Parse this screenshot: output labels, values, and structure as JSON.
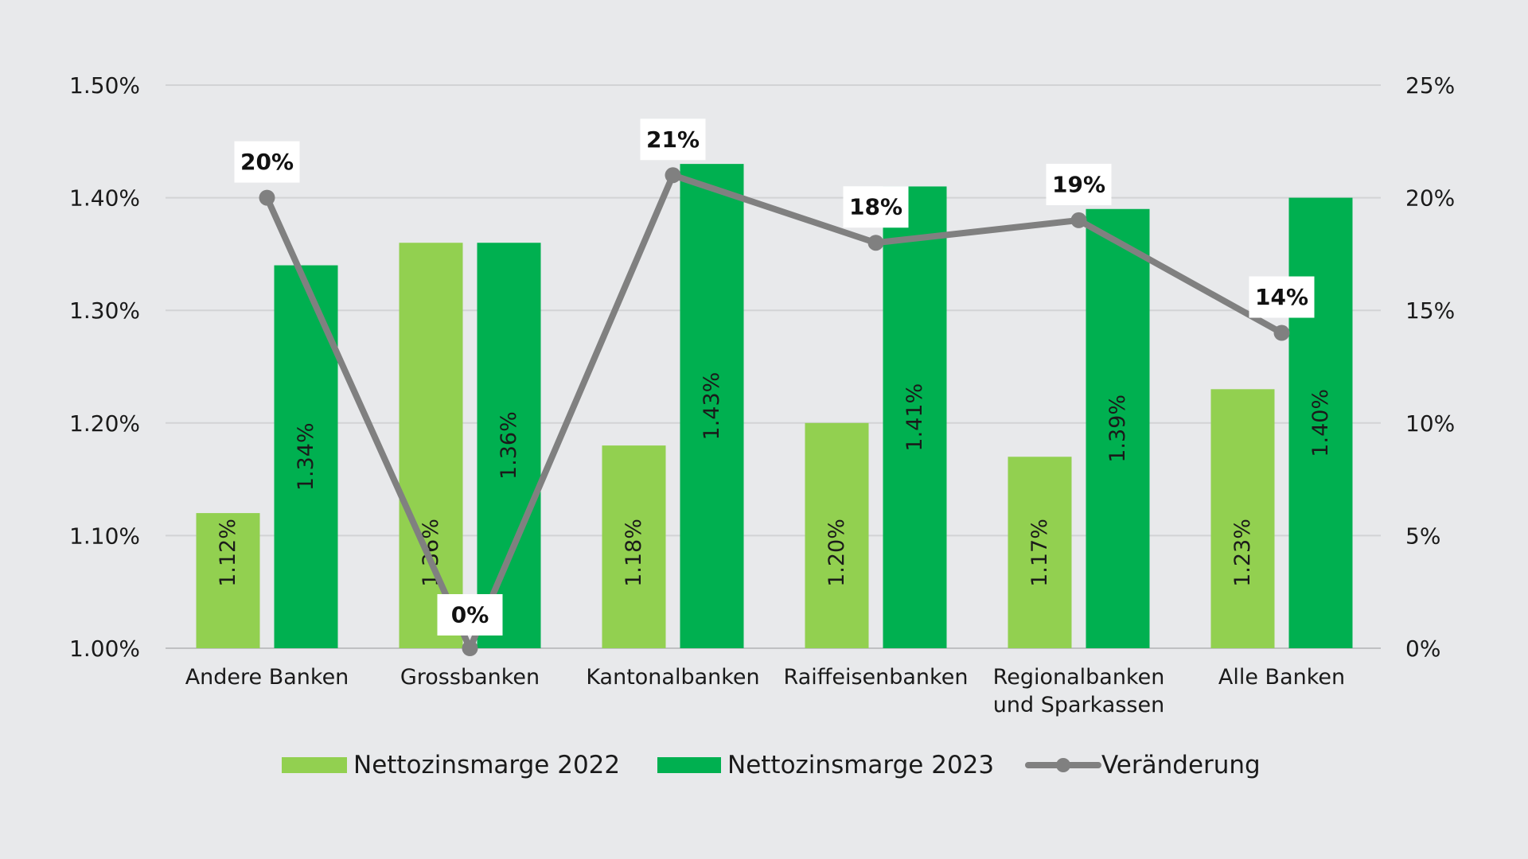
{
  "chart_data": {
    "type": "bar",
    "categories": [
      "Andere Banken",
      "Grossbanken",
      "Kantonalbanken",
      "Raiffeisenbanken",
      "Regionalbanken und Sparkassen",
      "Alle Banken"
    ],
    "category_lines": [
      [
        "Andere Banken"
      ],
      [
        "Grossbanken"
      ],
      [
        "Kantonalbanken"
      ],
      [
        "Raiffeisenbanken"
      ],
      [
        "Regionalbanken",
        "und Sparkassen"
      ],
      [
        "Alle Banken"
      ]
    ],
    "series": [
      {
        "name": "Nettozinsmarge 2022",
        "type": "bar",
        "axis": "left",
        "color": "#92d050",
        "values": [
          1.12,
          1.36,
          1.18,
          1.2,
          1.17,
          1.23
        ],
        "labels": [
          "1.12%",
          "1.36%",
          "1.18%",
          "1.20%",
          "1.17%",
          "1.23%"
        ]
      },
      {
        "name": "Nettozinsmarge 2023",
        "type": "bar",
        "axis": "left",
        "color": "#00b050",
        "values": [
          1.34,
          1.36,
          1.43,
          1.41,
          1.39,
          1.4
        ],
        "labels": [
          "1.34%",
          "1.36%",
          "1.43%",
          "1.41%",
          "1.39%",
          "1.40%"
        ]
      },
      {
        "name": "Veränderung",
        "type": "line",
        "axis": "right",
        "color": "#808080",
        "values": [
          20,
          0,
          21,
          18,
          19,
          14
        ],
        "labels": [
          "20%",
          "0%",
          "21%",
          "18%",
          "19%",
          "14%"
        ]
      }
    ],
    "y_left": {
      "min": 1.0,
      "max": 1.5,
      "ticks": [
        1.0,
        1.1,
        1.2,
        1.3,
        1.4,
        1.5
      ],
      "tick_labels": [
        "1.00%",
        "1.10%",
        "1.20%",
        "1.30%",
        "1.40%",
        "1.50%"
      ]
    },
    "y_right": {
      "min": 0,
      "max": 25,
      "ticks": [
        0,
        5,
        10,
        15,
        20,
        25
      ],
      "tick_labels": [
        "0%",
        "5%",
        "10%",
        "15%",
        "20%",
        "25%"
      ]
    },
    "grid": true,
    "legend": {
      "position": "bottom",
      "labels": [
        "Nettozinsmarge 2022",
        "Nettozinsmarge 2023",
        "Veränderung"
      ]
    },
    "colors": {
      "bar2022": "#92d050",
      "bar2023": "#00b050",
      "line": "#808080",
      "grid": "#d2d3d5",
      "background": "#e8e9eb"
    }
  }
}
